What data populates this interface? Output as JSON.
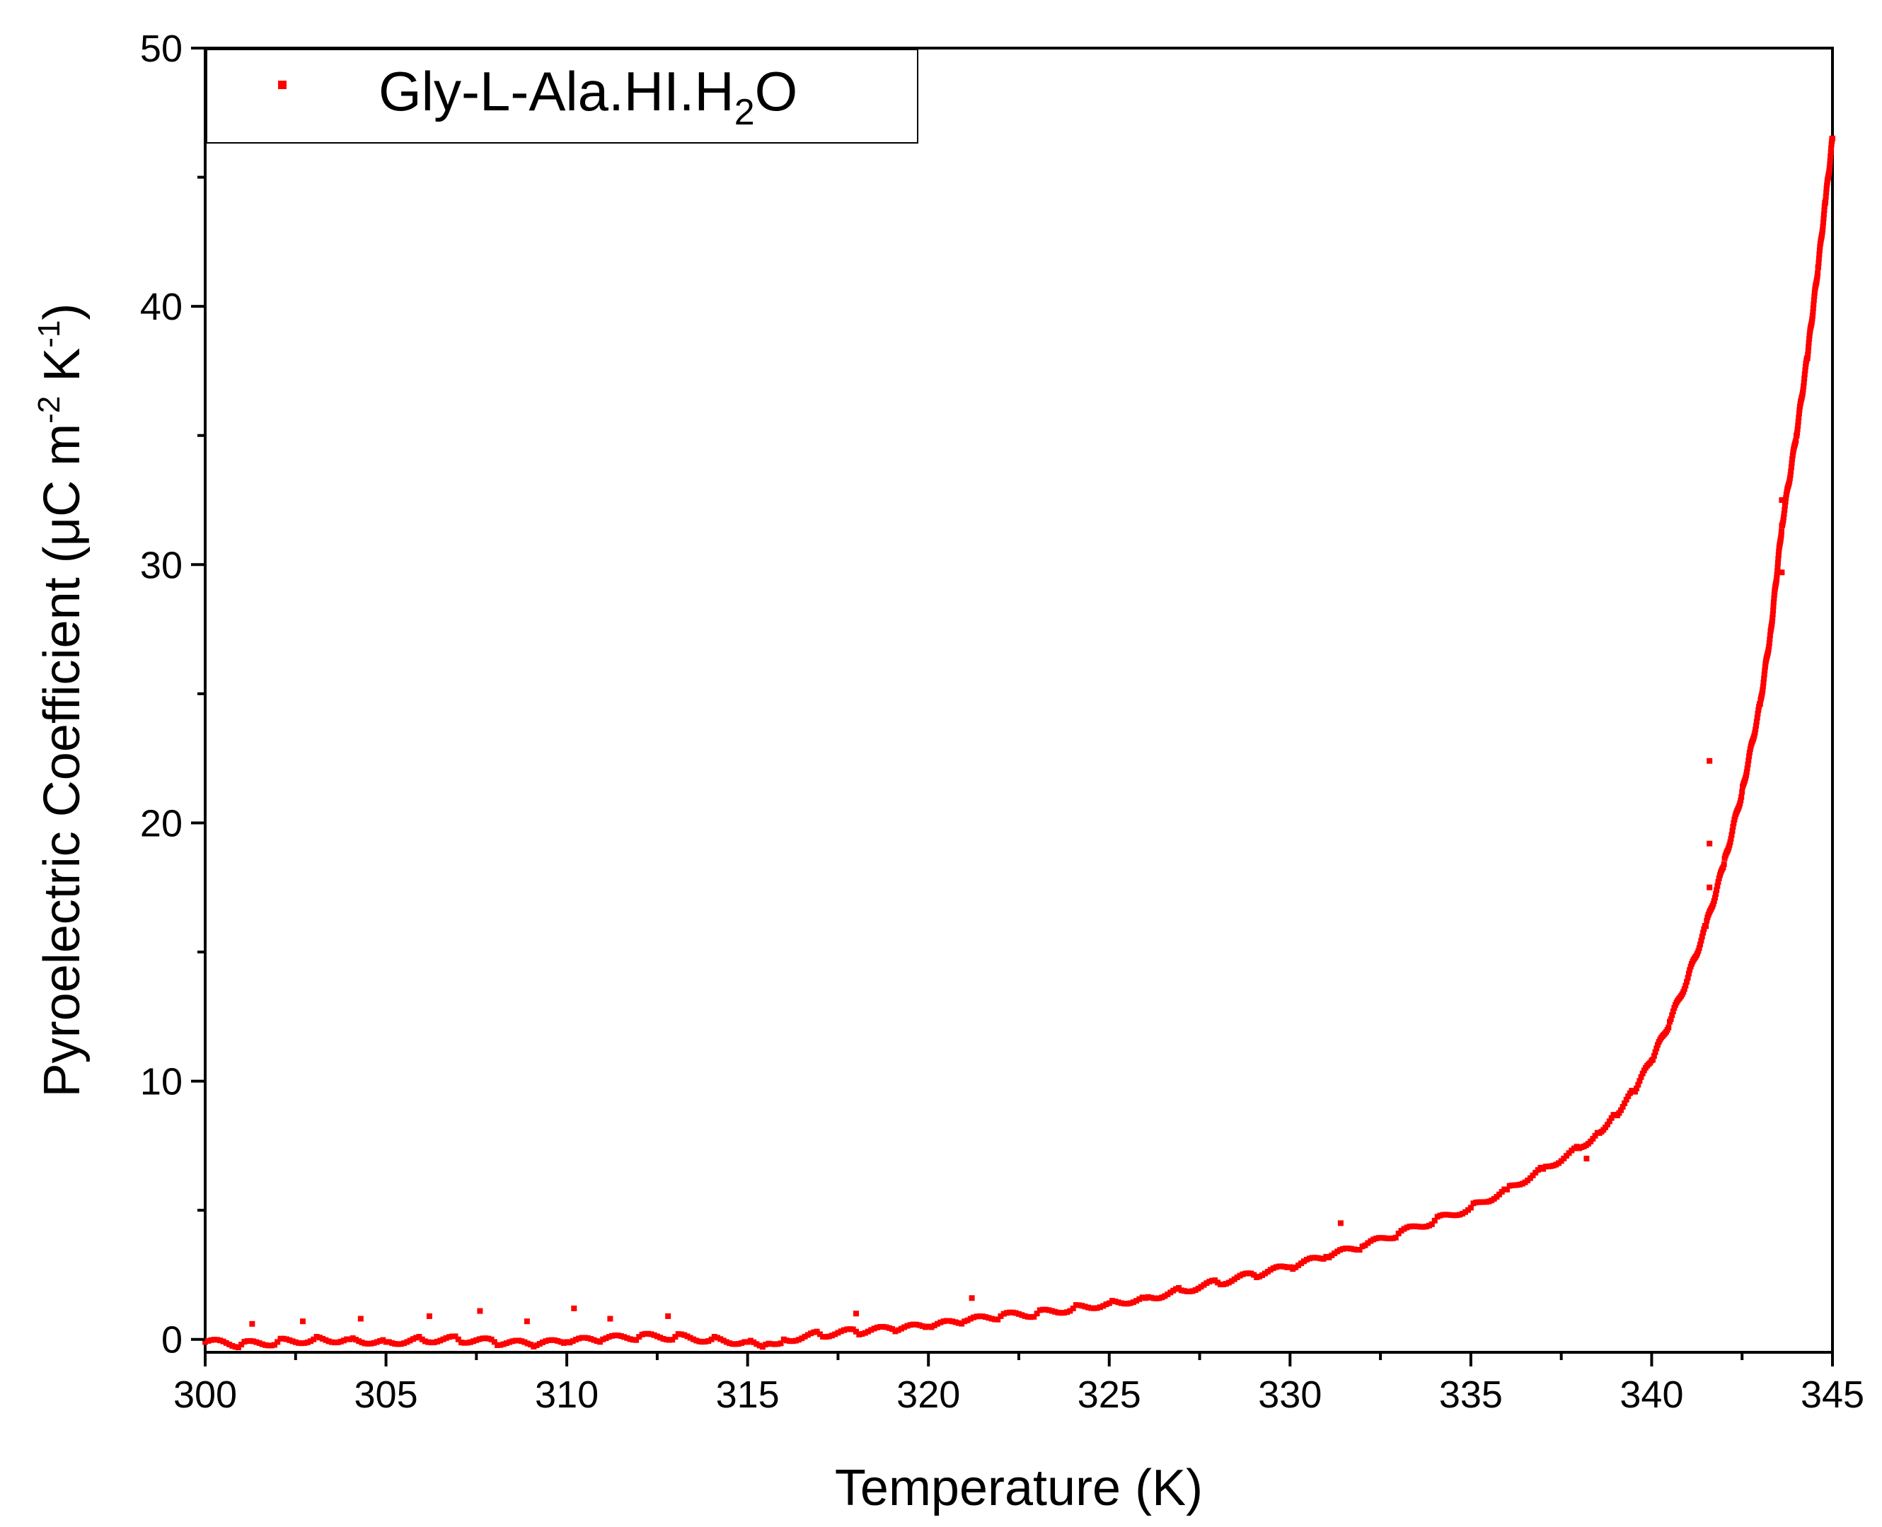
{
  "chart_data": {
    "type": "scatter",
    "xlabel": "Temperature (K)",
    "ylabel": "Pyroelectric Coefficient (μC m−2 K−1)",
    "xlim": [
      300,
      345
    ],
    "ylim": [
      -0.5,
      50
    ],
    "x_ticks": [
      300,
      305,
      310,
      315,
      320,
      325,
      330,
      335,
      340,
      345
    ],
    "y_ticks": [
      0,
      10,
      20,
      30,
      40,
      50
    ],
    "x_tick_labels": [
      "300",
      "305",
      "310",
      "315",
      "320",
      "325",
      "330",
      "335",
      "340",
      "345"
    ],
    "y_tick_labels": [
      "0",
      "10",
      "20",
      "30",
      "40",
      "50"
    ],
    "ylabel_parts": {
      "main": "Pyroelectric Coefficient (μC m",
      "sup1": "-2",
      "mid": " K",
      "sup2": "-1",
      "end": ")"
    },
    "grid": false,
    "legend_position": "top-left",
    "series": [
      {
        "name": "Gly-L-Ala.HI.H2O",
        "name_parts": {
          "main": "Gly-L-Ala.HI.H",
          "sub": "2",
          "end": "O"
        },
        "color": "#ff0000",
        "marker": "square",
        "x": [
          300.0,
          301.0,
          302.0,
          303.0,
          304.0,
          305.0,
          306.0,
          307.0,
          308.0,
          309.0,
          310.0,
          311.0,
          312.0,
          313.0,
          314.0,
          315.0,
          315.5,
          316.0,
          317.0,
          318.0,
          319.0,
          320.0,
          321.0,
          322.0,
          323.0,
          324.0,
          325.0,
          326.0,
          327.0,
          328.0,
          329.0,
          330.0,
          331.0,
          332.0,
          333.0,
          334.0,
          335.0,
          336.0,
          337.0,
          338.0,
          338.5,
          339.0,
          339.5,
          340.0,
          340.5,
          341.0,
          341.5,
          342.0,
          342.5,
          343.0,
          343.3,
          343.6,
          344.0,
          344.3,
          344.6,
          344.8,
          345.0
        ],
        "y": [
          -0.1,
          -0.2,
          -0.1,
          0.0,
          0.0,
          -0.1,
          0.0,
          0.0,
          -0.1,
          -0.2,
          -0.1,
          0.0,
          0.1,
          0.1,
          0.0,
          -0.1,
          -0.2,
          0.0,
          0.2,
          0.3,
          0.4,
          0.5,
          0.7,
          0.9,
          1.0,
          1.2,
          1.4,
          1.6,
          1.9,
          2.2,
          2.5,
          2.8,
          3.2,
          3.6,
          4.1,
          4.6,
          5.1,
          5.8,
          6.6,
          7.4,
          8.0,
          8.7,
          9.6,
          10.8,
          12.3,
          14.0,
          16.0,
          18.4,
          21.2,
          24.6,
          27.5,
          31.5,
          35.0,
          38.0,
          41.5,
          44.0,
          46.5
        ],
        "extra_points": [
          {
            "x": 301.3,
            "y": 0.6
          },
          {
            "x": 302.7,
            "y": 0.7
          },
          {
            "x": 304.3,
            "y": 0.8
          },
          {
            "x": 306.2,
            "y": 0.9
          },
          {
            "x": 307.6,
            "y": 1.1
          },
          {
            "x": 308.9,
            "y": 0.7
          },
          {
            "x": 310.2,
            "y": 1.2
          },
          {
            "x": 311.2,
            "y": 0.8
          },
          {
            "x": 312.8,
            "y": 0.9
          },
          {
            "x": 318.0,
            "y": 1.0
          },
          {
            "x": 321.2,
            "y": 1.6
          },
          {
            "x": 331.4,
            "y": 4.5
          },
          {
            "x": 341.6,
            "y": 22.4
          },
          {
            "x": 341.6,
            "y": 19.2
          },
          {
            "x": 341.6,
            "y": 17.5
          },
          {
            "x": 343.6,
            "y": 29.7
          },
          {
            "x": 343.6,
            "y": 32.5
          },
          {
            "x": 338.2,
            "y": 7.0
          }
        ]
      }
    ]
  }
}
